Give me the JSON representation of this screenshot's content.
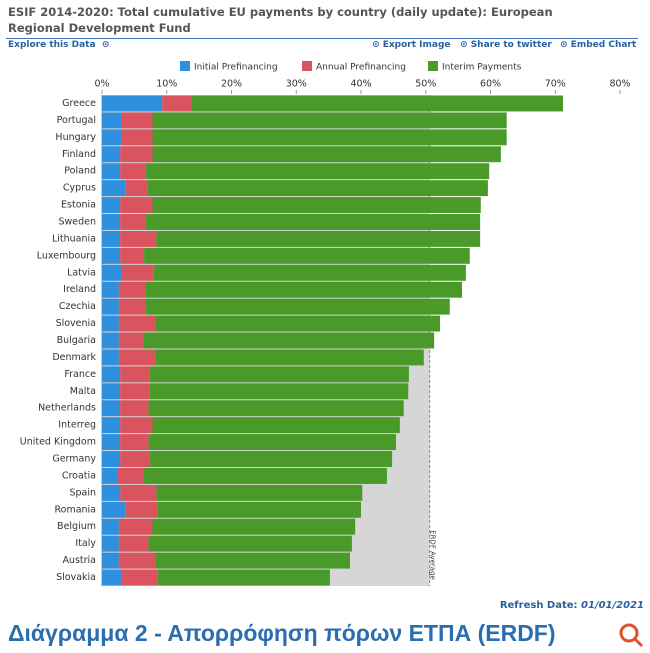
{
  "header": {
    "title": "ESIF 2014-2020: Total cumulative EU payments by country (daily update): European Regional Development Fund",
    "links": [
      "Explore this Data",
      "Export Image",
      "Share to twitter",
      "Embed Chart"
    ]
  },
  "chart_data": {
    "type": "stacked-bar-horizontal",
    "categories": [
      "Greece",
      "Portugal",
      "Hungary",
      "Finland",
      "Poland",
      "Cyprus",
      "Estonia",
      "Sweden",
      "Lithuania",
      "Luxembourg",
      "Latvia",
      "Ireland",
      "Czechia",
      "Slovenia",
      "Bulgaria",
      "Denmark",
      "France",
      "Malta",
      "Netherlands",
      "Interreg",
      "United Kingdom",
      "Germany",
      "Croatia",
      "Spain",
      "Romania",
      "Belgium",
      "Italy",
      "Austria",
      "Slovakia"
    ],
    "series": [
      {
        "name": "Initial Prefinancing",
        "color": "#2e8fdc",
        "values": [
          9.3,
          3.0,
          3.0,
          2.8,
          2.8,
          3.6,
          2.8,
          2.8,
          2.8,
          2.8,
          3.0,
          2.6,
          2.6,
          2.6,
          2.6,
          2.6,
          2.8,
          2.8,
          2.8,
          2.8,
          2.8,
          2.8,
          2.4,
          2.8,
          3.6,
          2.6,
          2.6,
          2.6,
          3.0
        ]
      },
      {
        "name": "Annual Prefinancing",
        "color": "#d9545e",
        "values": [
          4.6,
          4.8,
          4.8,
          5.0,
          4.0,
          3.4,
          5.0,
          4.0,
          5.6,
          3.7,
          5.0,
          4.2,
          4.2,
          5.6,
          3.8,
          5.6,
          4.6,
          4.6,
          4.4,
          5.0,
          4.4,
          4.6,
          4.0,
          5.6,
          5.0,
          5.2,
          4.6,
          5.6,
          5.6
        ]
      },
      {
        "name": "Interim Payments",
        "color": "#4a9a2a",
        "values": [
          57.3,
          54.7,
          54.7,
          53.8,
          53.0,
          52.6,
          50.7,
          51.6,
          50.0,
          50.3,
          48.2,
          48.8,
          46.9,
          44.0,
          44.9,
          41.5,
          40.0,
          39.9,
          39.4,
          38.2,
          38.2,
          37.4,
          37.6,
          31.8,
          31.4,
          31.3,
          31.4,
          30.1,
          26.6
        ]
      }
    ],
    "xlim": [
      0,
      80
    ],
    "xticks": [
      {
        "value": 0,
        "label": "0%"
      },
      {
        "value": 10,
        "label": "10%"
      },
      {
        "value": 20,
        "label": "20%"
      },
      {
        "value": 30,
        "label": "30%"
      },
      {
        "value": 40,
        "label": "40%"
      },
      {
        "value": 50,
        "label": "50%"
      },
      {
        "value": 60,
        "label": "60%"
      },
      {
        "value": 70,
        "label": "70%"
      },
      {
        "value": 80,
        "label": "80%"
      }
    ],
    "reference_line": {
      "label": "ERDF Average",
      "value": 50.6,
      "color": "#d6d6d6"
    },
    "legend": "top"
  },
  "footer": {
    "refresh_label": "Refresh Date:",
    "refresh_date": "01/01/2021"
  },
  "caption": "Διάγραμμα 2 - Απορρόφηση πόρων ΕΤΠΑ (ERDF)"
}
